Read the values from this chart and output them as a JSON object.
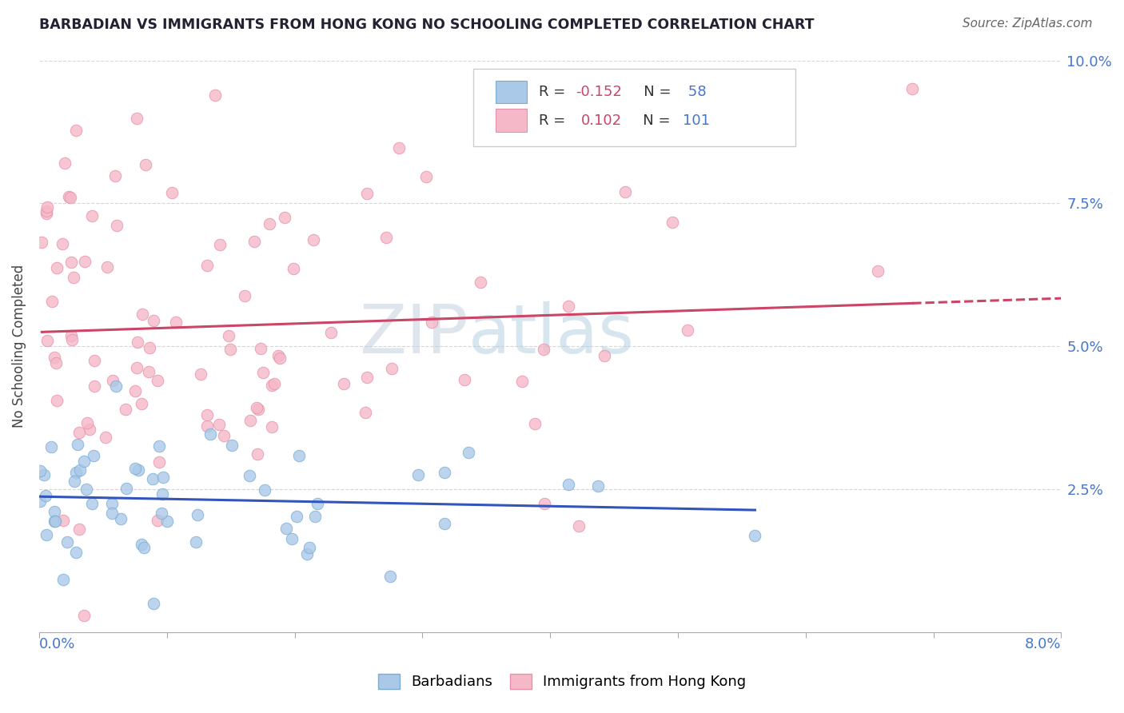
{
  "title": "BARBADIAN VS IMMIGRANTS FROM HONG KONG NO SCHOOLING COMPLETED CORRELATION CHART",
  "source": "Source: ZipAtlas.com",
  "ylabel": "No Schooling Completed",
  "ylabel_right_ticks": [
    "2.5%",
    "5.0%",
    "7.5%",
    "10.0%"
  ],
  "ylabel_right_vals": [
    0.025,
    0.05,
    0.075,
    0.1
  ],
  "xlim": [
    0.0,
    0.08
  ],
  "ylim": [
    0.0,
    0.1
  ],
  "barbadian_R": -0.152,
  "barbadian_N": 58,
  "hk_R": 0.102,
  "hk_N": 101,
  "barbadian_color": "#aac8e8",
  "barbadian_edge": "#7aadd4",
  "hk_color": "#f5b8c8",
  "hk_edge": "#e890a8",
  "line_barbadian_color": "#3355bb",
  "line_hk_color": "#cc4466",
  "background_color": "#ffffff",
  "grid_color": "#cccccc",
  "title_color": "#222233",
  "source_color": "#666666",
  "tick_label_color": "#4477cc",
  "legend_r_color": "#cc4466",
  "legend_n_color": "#4477cc",
  "seed": 99
}
